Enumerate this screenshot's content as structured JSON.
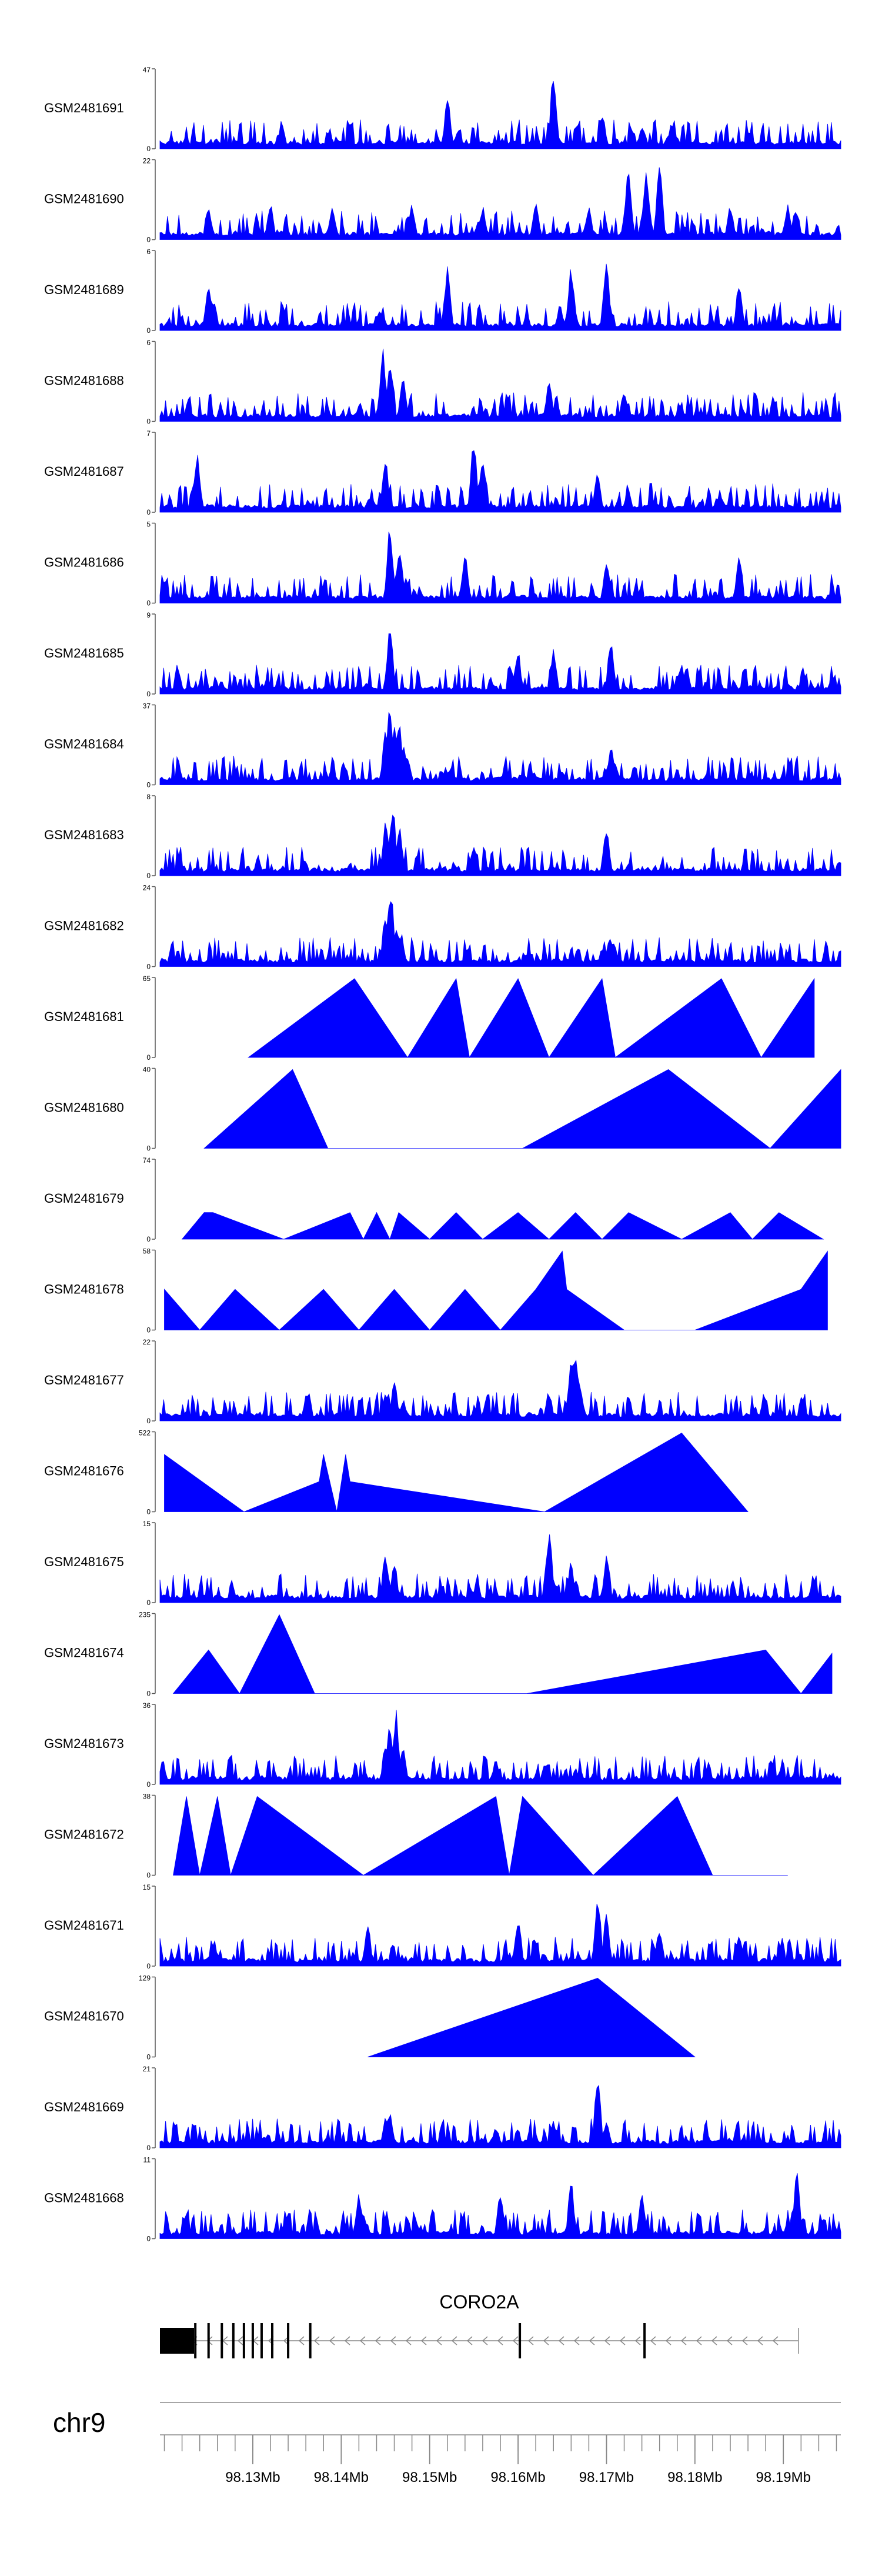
{
  "chart_data": {
    "type": "area",
    "title": "",
    "genome": "chr9",
    "xrange_mb": [
      98.1195,
      98.1965
    ],
    "x_ticks_mb": [
      98.13,
      98.14,
      98.15,
      98.16,
      98.17,
      98.18,
      98.19
    ],
    "x_tick_labels": [
      "98.13Mb",
      "98.14Mb",
      "98.15Mb",
      "98.16Mb",
      "98.17Mb",
      "98.18Mb",
      "98.19Mb"
    ],
    "gene": {
      "name": "CORO2A",
      "strand": "-",
      "start_mb": 98.1195,
      "end_mb": 98.1917,
      "exons_mb": [
        98.1195,
        98.1235,
        98.125,
        98.1265,
        98.1278,
        98.129,
        98.13,
        98.131,
        98.1322,
        98.134,
        98.1365,
        98.1602,
        98.1743
      ]
    },
    "series": [
      {
        "name": "GSM2481691",
        "ymax": 47,
        "ymin_label": "0",
        "style": "spiky",
        "peaks": [
          [
            98.1225,
            8
          ],
          [
            98.138,
            4
          ],
          [
            98.152,
            32
          ],
          [
            98.1532,
            12
          ],
          [
            98.164,
            47
          ],
          [
            98.166,
            5
          ],
          [
            98.1695,
            24
          ],
          [
            98.174,
            14
          ]
        ]
      },
      {
        "name": "GSM2481690",
        "ymax": 22,
        "ymin_label": "0",
        "style": "spiky",
        "peaks": [
          [
            98.125,
            10
          ],
          [
            98.132,
            10
          ],
          [
            98.139,
            10
          ],
          [
            98.148,
            10
          ],
          [
            98.156,
            10
          ],
          [
            98.162,
            10
          ],
          [
            98.168,
            10
          ],
          [
            98.1725,
            22
          ],
          [
            98.1745,
            22
          ],
          [
            98.176,
            22
          ],
          [
            98.184,
            10
          ],
          [
            98.1905,
            10
          ]
        ]
      },
      {
        "name": "GSM2481689",
        "ymax": 6,
        "ymin_label": "0",
        "style": "spiky",
        "peaks": [
          [
            98.125,
            4
          ],
          [
            98.152,
            5
          ],
          [
            98.166,
            5
          ],
          [
            98.17,
            6
          ],
          [
            98.185,
            4
          ]
        ]
      },
      {
        "name": "GSM2481688",
        "ymax": 6,
        "ymin_label": "0",
        "style": "spiky",
        "peaks": [
          [
            98.1447,
            6
          ],
          [
            98.1455,
            5
          ],
          [
            98.147,
            3.5
          ],
          [
            98.1635,
            3.5
          ],
          [
            98.172,
            2.5
          ]
        ]
      },
      {
        "name": "GSM2481687",
        "ymax": 7,
        "ymin_label": "0",
        "style": "spiky",
        "peaks": [
          [
            98.1237,
            5.5
          ],
          [
            98.145,
            5
          ],
          [
            98.155,
            7
          ],
          [
            98.156,
            5.5
          ],
          [
            98.169,
            4
          ]
        ]
      },
      {
        "name": "GSM2481686",
        "ymax": 5,
        "ymin_label": "0",
        "style": "spiky",
        "peaks": [
          [
            98.1455,
            5
          ],
          [
            98.1466,
            4
          ],
          [
            98.154,
            3.5
          ],
          [
            98.17,
            3
          ],
          [
            98.185,
            3
          ]
        ]
      },
      {
        "name": "GSM2481685",
        "ymax": 9,
        "ymin_label": "0",
        "style": "spiky",
        "peaks": [
          [
            98.1455,
            8
          ],
          [
            98.16,
            5
          ],
          [
            98.164,
            5.5
          ],
          [
            98.1705,
            7
          ],
          [
            98.179,
            3.5
          ]
        ]
      },
      {
        "name": "GSM2481684",
        "ymax": 37,
        "ymin_label": "0",
        "style": "spiky",
        "peaks": [
          [
            98.145,
            28
          ],
          [
            98.1455,
            37
          ],
          [
            98.146,
            30
          ],
          [
            98.1465,
            32
          ],
          [
            98.147,
            22
          ],
          [
            98.1475,
            15
          ],
          [
            98.165,
            6
          ],
          [
            98.17,
            8
          ],
          [
            98.1705,
            18
          ],
          [
            98.171,
            12
          ]
        ]
      },
      {
        "name": "GSM2481683",
        "ymax": 8,
        "ymin_label": "0",
        "style": "spiky",
        "peaks": [
          [
            98.145,
            5.5
          ],
          [
            98.1458,
            8
          ],
          [
            98.1466,
            5
          ],
          [
            98.17,
            5.5
          ],
          [
            98.155,
            3
          ]
        ]
      },
      {
        "name": "GSM2481682",
        "ymax": 24,
        "ymin_label": "0",
        "style": "spiky",
        "peaks": [
          [
            98.145,
            18
          ],
          [
            98.1456,
            24
          ],
          [
            98.1462,
            14
          ],
          [
            98.1468,
            10
          ],
          [
            98.1703,
            8
          ],
          [
            98.171,
            5
          ]
        ]
      },
      {
        "name": "GSM2481681",
        "ymax": 65,
        "ymin_label": "0",
        "style": "points",
        "x": [
          98.1295,
          98.1415,
          98.1475,
          98.153,
          98.1545,
          98.16,
          98.1635,
          98.1695,
          98.171,
          98.183,
          98.1875,
          98.1935
        ],
        "y": [
          0,
          65,
          0,
          65,
          0,
          65,
          0,
          65,
          0,
          65,
          0,
          65
        ]
      },
      {
        "name": "GSM2481680",
        "ymax": 40,
        "ymin_label": "0",
        "style": "points",
        "x": [
          98.1245,
          98.1345,
          98.1385,
          98.1605,
          98.177,
          98.1885,
          98.1965
        ],
        "y": [
          0,
          40,
          0,
          0,
          40,
          0,
          40
        ]
      },
      {
        "name": "GSM2481679",
        "ymax": 74,
        "ymin_label": "0",
        "style": "points",
        "x": [
          98.122,
          98.1245,
          98.1255,
          98.1335,
          98.141,
          98.1425,
          98.144,
          98.1455,
          98.1465,
          98.15,
          98.153,
          98.156,
          98.16,
          98.1635,
          98.1665,
          98.1695,
          98.1725,
          98.1785,
          98.184,
          98.1865,
          98.1895,
          98.1945
        ],
        "y": [
          0,
          25,
          25,
          0,
          25,
          0,
          25,
          0,
          25,
          0,
          25,
          0,
          25,
          0,
          25,
          0,
          25,
          0,
          25,
          0,
          25,
          0
        ]
      },
      {
        "name": "GSM2481678",
        "ymax": 58,
        "ymin_label": "0",
        "style": "points",
        "x": [
          98.12,
          98.124,
          98.128,
          98.133,
          98.138,
          98.142,
          98.146,
          98.15,
          98.154,
          98.158,
          98.162,
          98.165,
          98.1655,
          98.172,
          98.18,
          98.192,
          98.195
        ],
        "y": [
          30,
          0,
          30,
          0,
          30,
          0,
          30,
          0,
          30,
          0,
          30,
          58,
          30,
          0,
          0,
          30,
          58
        ]
      },
      {
        "name": "GSM2481677",
        "ymax": 22,
        "ymin_label": "0",
        "style": "spiky",
        "peaks": [
          [
            98.145,
            8
          ],
          [
            98.146,
            12
          ],
          [
            98.147,
            6
          ],
          [
            98.1575,
            4
          ],
          [
            98.1635,
            9
          ],
          [
            98.166,
            18
          ],
          [
            98.1665,
            22
          ],
          [
            98.167,
            10
          ]
        ]
      },
      {
        "name": "GSM2481676",
        "ymax": 522,
        "ymin_label": "0",
        "style": "points",
        "x": [
          98.12,
          98.129,
          98.1375,
          98.138,
          98.1395,
          98.1405,
          98.141,
          98.163,
          98.1785,
          98.186
        ],
        "y": [
          380,
          0,
          200,
          380,
          0,
          380,
          200,
          0,
          522,
          0
        ]
      },
      {
        "name": "GSM2481675",
        "ymax": 15,
        "ymin_label": "0",
        "style": "spiky",
        "peaks": [
          [
            98.145,
            10
          ],
          [
            98.146,
            8
          ],
          [
            98.1635,
            15
          ],
          [
            98.166,
            8
          ],
          [
            98.17,
            9
          ]
        ]
      },
      {
        "name": "GSM2481674",
        "ymax": 235,
        "ymin_label": "0",
        "style": "points",
        "x": [
          98.121,
          98.125,
          98.1285,
          98.133,
          98.137,
          98.161,
          98.188,
          98.192,
          98.1955
        ],
        "y": [
          0,
          130,
          0,
          235,
          0,
          0,
          130,
          0,
          120
        ]
      },
      {
        "name": "GSM2481673",
        "ymax": 36,
        "ymin_label": "0",
        "style": "spiky",
        "peaks": [
          [
            98.145,
            20
          ],
          [
            98.1455,
            30
          ],
          [
            98.1462,
            35
          ],
          [
            98.147,
            18
          ],
          [
            98.1575,
            12
          ],
          [
            98.163,
            10
          ],
          [
            98.1665,
            8
          ]
        ]
      },
      {
        "name": "GSM2481672",
        "ymax": 38,
        "ymin_label": "0",
        "style": "points",
        "x": [
          98.121,
          98.1225,
          98.124,
          98.126,
          98.1275,
          98.1305,
          98.1425,
          98.1575,
          98.159,
          98.1605,
          98.1685,
          98.178,
          98.182,
          98.1905
        ],
        "y": [
          0,
          38,
          0,
          38,
          0,
          38,
          0,
          38,
          0,
          38,
          0,
          38,
          0,
          0
        ]
      },
      {
        "name": "GSM2481671",
        "ymax": 15,
        "ymin_label": "0",
        "style": "spiky",
        "peaks": [
          [
            98.143,
            8
          ],
          [
            98.16,
            10
          ],
          [
            98.169,
            15
          ],
          [
            98.17,
            10
          ],
          [
            98.176,
            8
          ],
          [
            98.185,
            7
          ]
        ]
      },
      {
        "name": "GSM2481670",
        "ymax": 129,
        "ymin_label": "0",
        "style": "points",
        "x": [
          98.143,
          98.169,
          98.18
        ],
        "y": [
          0,
          129,
          0
        ]
      },
      {
        "name": "GSM2481669",
        "ymax": 21,
        "ymin_label": "0",
        "style": "spiky",
        "peaks": [
          [
            98.145,
            8
          ],
          [
            98.1455,
            10
          ],
          [
            98.1575,
            6
          ],
          [
            98.169,
            21
          ],
          [
            98.17,
            8
          ]
        ]
      },
      {
        "name": "GSM2481668",
        "ymax": 11,
        "ymin_label": "0",
        "style": "spiky",
        "peaks": [
          [
            98.142,
            7
          ],
          [
            98.158,
            7
          ],
          [
            98.166,
            8
          ],
          [
            98.174,
            7
          ],
          [
            98.1915,
            10
          ]
        ]
      }
    ]
  },
  "colors": {
    "fill": "#0000ff",
    "axis": "#555555",
    "text": "#000000",
    "gene": "#000000"
  }
}
